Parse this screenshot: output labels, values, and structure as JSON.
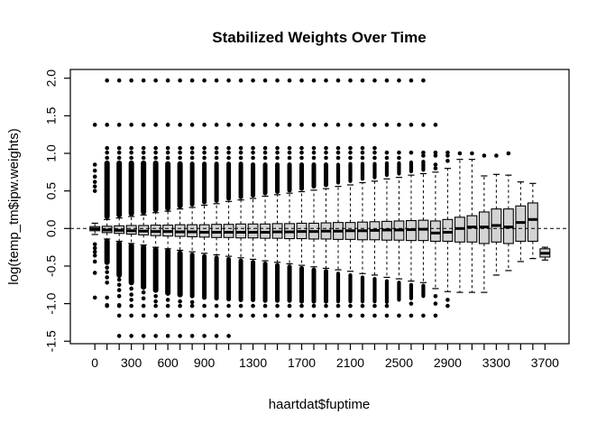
{
  "page": {
    "background": "#ffffff"
  },
  "chart_data": {
    "type": "boxplot",
    "title": "Stabilized Weights Over Time",
    "xlabel": "haartdat$fuptime",
    "ylabel": "log(temp_tm$ipw.weights)",
    "box_fill": "#d3d3d3",
    "axis_color": "#000000",
    "grid": false,
    "ylim": [
      -1.55,
      2.1
    ],
    "y_ticks": [
      -1.5,
      -1.0,
      -0.5,
      0.0,
      0.5,
      1.0,
      1.5,
      2.0
    ],
    "y_tick_labels": [
      "-1.5",
      "-1.0",
      "-0.5",
      "0.0",
      "0.5",
      "1.0",
      "1.5",
      "2.0"
    ],
    "n_groups": 38,
    "x_labels": [
      {
        "pos": 1,
        "label": "0"
      },
      {
        "pos": 4,
        "label": "300"
      },
      {
        "pos": 7,
        "label": "600"
      },
      {
        "pos": 10,
        "label": "900"
      },
      {
        "pos": 14,
        "label": "1300"
      },
      {
        "pos": 18,
        "label": "1700"
      },
      {
        "pos": 22,
        "label": "2100"
      },
      {
        "pos": 26,
        "label": "2500"
      },
      {
        "pos": 30,
        "label": "2900"
      },
      {
        "pos": 34,
        "label": "3300"
      },
      {
        "pos": 38,
        "label": "3700"
      }
    ],
    "reference_line": {
      "y": 0,
      "style": "dashed"
    },
    "outlier_rows": [
      {
        "v": 1.97,
        "from": 2,
        "to": 28
      },
      {
        "v": 1.38,
        "from": 1,
        "to": 29
      },
      {
        "v": 1.07,
        "from": 2,
        "to": 24
      },
      {
        "v": 1.01,
        "from": 2,
        "to": 30
      },
      {
        "v": 0.94,
        "from": 2,
        "to": 26
      },
      {
        "v": -1.03,
        "from": 2,
        "to": 25
      },
      {
        "v": -1.16,
        "from": 3,
        "to": 29
      },
      {
        "v": -1.43,
        "from": 3,
        "to": 12
      }
    ],
    "groups": [
      {
        "t": 0,
        "q1": -0.03,
        "m": -0.005,
        "q3": 0.025,
        "lo": -0.08,
        "hi": 0.07,
        "du": null,
        "dd": null,
        "ou": [
          0.5,
          0.56,
          0.62,
          0.69,
          0.77,
          0.85
        ],
        "od": [
          -0.21,
          -0.26,
          -0.31,
          -0.36,
          -0.44,
          -0.59,
          -0.92
        ]
      },
      {
        "t": 100,
        "q1": -0.055,
        "m": -0.02,
        "q3": 0.03,
        "lo": -0.14,
        "hi": 0.12,
        "du": [
          0.16,
          0.87
        ],
        "dd": [
          -0.17,
          -0.45
        ],
        "ou": [],
        "od": [
          -0.52,
          -0.58,
          -0.65,
          -0.72,
          -0.92,
          -1.02
        ]
      },
      {
        "t": 200,
        "q1": -0.065,
        "m": -0.025,
        "q3": 0.035,
        "lo": -0.17,
        "hi": 0.14,
        "du": [
          0.18,
          0.87
        ],
        "dd": [
          -0.2,
          -0.62
        ],
        "ou": [],
        "od": [
          -0.68,
          -0.75,
          -0.82,
          -0.9,
          -1.02
        ]
      },
      {
        "t": 300,
        "q1": -0.075,
        "m": -0.03,
        "q3": 0.04,
        "lo": -0.2,
        "hi": 0.16,
        "du": [
          0.2,
          0.87
        ],
        "dd": [
          -0.23,
          -0.72
        ],
        "ou": [],
        "od": [
          -0.8,
          -0.88,
          -0.95
        ]
      },
      {
        "t": 400,
        "q1": -0.085,
        "m": -0.035,
        "q3": 0.04,
        "lo": -0.22,
        "hi": 0.18,
        "du": [
          0.22,
          0.87
        ],
        "dd": [
          -0.25,
          -0.78
        ],
        "ou": [],
        "od": [
          -0.85,
          -0.93
        ]
      },
      {
        "t": 500,
        "q1": -0.095,
        "m": -0.04,
        "q3": 0.045,
        "lo": -0.25,
        "hi": 0.21,
        "du": [
          0.25,
          0.87
        ],
        "dd": [
          -0.28,
          -0.82
        ],
        "ou": [],
        "od": [
          -0.9,
          -0.97
        ]
      },
      {
        "t": 600,
        "q1": -0.1,
        "m": -0.04,
        "q3": 0.045,
        "lo": -0.27,
        "hi": 0.23,
        "du": [
          0.27,
          0.86
        ],
        "dd": [
          -0.3,
          -0.86
        ],
        "ou": [],
        "od": [
          -0.95
        ]
      },
      {
        "t": 700,
        "q1": -0.105,
        "m": -0.045,
        "q3": 0.05,
        "lo": -0.29,
        "hi": 0.26,
        "du": [
          0.3,
          0.86
        ],
        "dd": [
          -0.33,
          -0.88
        ],
        "ou": [],
        "od": [
          -0.97
        ]
      },
      {
        "t": 800,
        "q1": -0.11,
        "m": -0.045,
        "q3": 0.05,
        "lo": -0.31,
        "hi": 0.28,
        "du": [
          0.32,
          0.86
        ],
        "dd": [
          -0.35,
          -0.9
        ],
        "ou": [],
        "od": [
          -0.98
        ]
      },
      {
        "t": 900,
        "q1": -0.115,
        "m": -0.05,
        "q3": 0.05,
        "lo": -0.33,
        "hi": 0.31,
        "du": [
          0.35,
          0.86
        ],
        "dd": [
          -0.37,
          -0.92
        ],
        "ou": [],
        "od": []
      },
      {
        "t": 1000,
        "q1": -0.12,
        "m": -0.05,
        "q3": 0.055,
        "lo": -0.35,
        "hi": 0.33,
        "du": [
          0.37,
          0.86
        ],
        "dd": [
          -0.39,
          -0.93
        ],
        "ou": [],
        "od": []
      },
      {
        "t": 1100,
        "q1": -0.12,
        "m": -0.05,
        "q3": 0.055,
        "lo": -0.37,
        "hi": 0.36,
        "du": [
          0.4,
          0.86
        ],
        "dd": [
          -0.41,
          -0.94
        ],
        "ou": [],
        "od": []
      },
      {
        "t": 1200,
        "q1": -0.125,
        "m": -0.05,
        "q3": 0.06,
        "lo": -0.39,
        "hi": 0.38,
        "du": [
          0.42,
          0.86
        ],
        "dd": [
          -0.43,
          -0.95
        ],
        "ou": [],
        "od": []
      },
      {
        "t": 1300,
        "q1": -0.125,
        "m": -0.05,
        "q3": 0.06,
        "lo": -0.41,
        "hi": 0.4,
        "du": [
          0.44,
          0.85
        ],
        "dd": [
          -0.45,
          -0.95
        ],
        "ou": [],
        "od": []
      },
      {
        "t": 1400,
        "q1": -0.13,
        "m": -0.05,
        "q3": 0.06,
        "lo": -0.43,
        "hi": 0.43,
        "du": [
          0.47,
          0.85
        ],
        "dd": [
          -0.47,
          -0.96
        ],
        "ou": [],
        "od": []
      },
      {
        "t": 1500,
        "q1": -0.13,
        "m": -0.045,
        "q3": 0.065,
        "lo": -0.45,
        "hi": 0.45,
        "du": [
          0.49,
          0.85
        ],
        "dd": [
          -0.49,
          -0.96
        ],
        "ou": [],
        "od": []
      },
      {
        "t": 1600,
        "q1": -0.135,
        "m": -0.045,
        "q3": 0.065,
        "lo": -0.47,
        "hi": 0.47,
        "du": [
          0.51,
          0.85
        ],
        "dd": [
          -0.51,
          -0.96
        ],
        "ou": [],
        "od": []
      },
      {
        "t": 1700,
        "q1": -0.135,
        "m": -0.04,
        "q3": 0.07,
        "lo": -0.49,
        "hi": 0.49,
        "du": [
          0.53,
          0.85
        ],
        "dd": [
          -0.53,
          -0.97
        ],
        "ou": [],
        "od": []
      },
      {
        "t": 1800,
        "q1": -0.14,
        "m": -0.04,
        "q3": 0.07,
        "lo": -0.51,
        "hi": 0.51,
        "du": [
          0.56,
          0.85
        ],
        "dd": [
          -0.55,
          -0.97
        ],
        "ou": [],
        "od": []
      },
      {
        "t": 1900,
        "q1": -0.14,
        "m": -0.035,
        "q3": 0.075,
        "lo": -0.53,
        "hi": 0.53,
        "du": [
          0.58,
          0.85
        ],
        "dd": [
          -0.57,
          -0.97
        ],
        "ou": [],
        "od": []
      },
      {
        "t": 2000,
        "q1": -0.145,
        "m": -0.035,
        "q3": 0.08,
        "lo": -0.55,
        "hi": 0.56,
        "du": [
          0.61,
          0.85
        ],
        "dd": [
          -0.6,
          -0.97
        ],
        "ou": [],
        "od": []
      },
      {
        "t": 2100,
        "q1": -0.145,
        "m": -0.03,
        "q3": 0.08,
        "lo": -0.57,
        "hi": 0.58,
        "du": [
          0.63,
          0.86
        ],
        "dd": [
          -0.62,
          -0.97
        ],
        "ou": [],
        "od": []
      },
      {
        "t": 2200,
        "q1": -0.15,
        "m": -0.03,
        "q3": 0.085,
        "lo": -0.6,
        "hi": 0.61,
        "du": [
          0.66,
          0.86
        ],
        "dd": [
          -0.65,
          -0.97
        ],
        "ou": [],
        "od": []
      },
      {
        "t": 2300,
        "q1": -0.15,
        "m": -0.025,
        "q3": 0.09,
        "lo": -0.62,
        "hi": 0.63,
        "du": [
          0.68,
          0.86
        ],
        "dd": [
          -0.67,
          -0.97
        ],
        "ou": [],
        "od": []
      },
      {
        "t": 2400,
        "q1": -0.155,
        "m": -0.02,
        "q3": 0.095,
        "lo": -0.65,
        "hi": 0.66,
        "du": [
          0.71,
          0.87
        ],
        "dd": [
          -0.7,
          -0.98
        ],
        "ou": [],
        "od": []
      },
      {
        "t": 2500,
        "q1": -0.155,
        "m": -0.02,
        "q3": 0.1,
        "lo": -0.67,
        "hi": 0.68,
        "du": [
          0.73,
          0.87
        ],
        "dd": [
          -0.72,
          -0.95
        ],
        "ou": [],
        "od": []
      },
      {
        "t": 2600,
        "q1": -0.16,
        "m": -0.015,
        "q3": 0.105,
        "lo": -0.7,
        "hi": 0.71,
        "du": [
          0.76,
          0.88
        ],
        "dd": [
          -0.75,
          -0.93
        ],
        "ou": [],
        "od": [
          -1.0
        ]
      },
      {
        "t": 2700,
        "q1": -0.16,
        "m": -0.01,
        "q3": 0.11,
        "lo": -0.72,
        "hi": 0.73,
        "du": [
          0.78,
          0.89
        ],
        "dd": [
          -0.76,
          -0.9
        ],
        "ou": [
          0.97
        ],
        "od": []
      },
      {
        "t": 2800,
        "q1": -0.17,
        "m": -0.06,
        "q3": 0.1,
        "lo": -0.8,
        "hi": 0.75,
        "du": null,
        "dd": null,
        "ou": [
          0.8,
          0.85,
          0.97
        ],
        "od": [
          -0.9,
          -1.0
        ]
      },
      {
        "t": 2900,
        "q1": -0.17,
        "m": -0.05,
        "q3": 0.12,
        "lo": -0.84,
        "hi": 0.8,
        "du": null,
        "dd": null,
        "ou": [
          0.9,
          0.97
        ],
        "od": [
          -0.95,
          -1.03
        ]
      },
      {
        "t": 3000,
        "q1": -0.18,
        "m": 0.0,
        "q3": 0.15,
        "lo": -0.85,
        "hi": 0.92,
        "du": null,
        "dd": null,
        "ou": [
          1.0
        ],
        "od": []
      },
      {
        "t": 3100,
        "q1": -0.18,
        "m": 0.02,
        "q3": 0.17,
        "lo": -0.85,
        "hi": 0.92,
        "du": null,
        "dd": null,
        "ou": [
          1.0
        ],
        "od": []
      },
      {
        "t": 3200,
        "q1": -0.2,
        "m": 0.02,
        "q3": 0.22,
        "lo": -0.85,
        "hi": 0.7,
        "du": null,
        "dd": null,
        "ou": [
          0.97
        ],
        "od": []
      },
      {
        "t": 3300,
        "q1": -0.18,
        "m": 0.04,
        "q3": 0.26,
        "lo": -0.62,
        "hi": 0.72,
        "du": null,
        "dd": null,
        "ou": [
          0.97
        ],
        "od": []
      },
      {
        "t": 3400,
        "q1": -0.2,
        "m": 0.02,
        "q3": 0.26,
        "lo": -0.56,
        "hi": 0.71,
        "du": null,
        "dd": null,
        "ou": [
          1.0
        ],
        "od": []
      },
      {
        "t": 3500,
        "q1": -0.17,
        "m": 0.08,
        "q3": 0.3,
        "lo": -0.44,
        "hi": 0.62,
        "du": null,
        "dd": null,
        "ou": [],
        "od": []
      },
      {
        "t": 3600,
        "q1": -0.17,
        "m": 0.12,
        "q3": 0.34,
        "lo": -0.4,
        "hi": 0.6,
        "du": null,
        "dd": null,
        "ou": [],
        "od": []
      },
      {
        "t": 3700,
        "q1": -0.38,
        "m": -0.33,
        "q3": -0.27,
        "lo": -0.42,
        "hi": -0.25,
        "du": null,
        "dd": null,
        "ou": [],
        "od": []
      }
    ]
  }
}
